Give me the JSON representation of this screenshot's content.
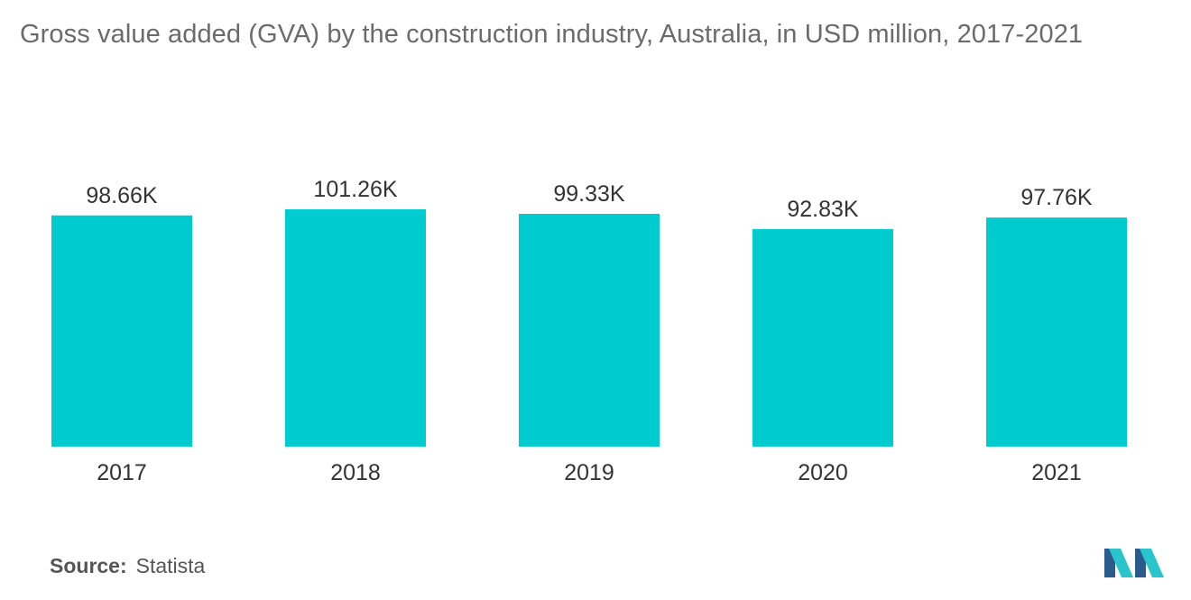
{
  "title": "Gross value added (GVA) by the construction industry, Australia, in USD million, 2017-2021",
  "source": {
    "label": "Source:",
    "value": "Statista"
  },
  "colors": {
    "bar": "#00ccd0",
    "logo_dark": "#2a5b8c",
    "logo_light": "#29c4cc"
  },
  "logo": {
    "name": "mordor-intelligence-logo"
  },
  "chart_data": {
    "type": "bar",
    "title": "Gross value added (GVA) by the construction industry, Australia, in USD million, 2017-2021",
    "categories": [
      "2017",
      "2018",
      "2019",
      "2020",
      "2021"
    ],
    "values": [
      98660,
      101260,
      99330,
      92830,
      97760
    ],
    "value_labels": [
      "98.66K",
      "101.26K",
      "99.33K",
      "92.83K",
      "97.76K"
    ],
    "ylim": [
      0,
      101260
    ],
    "grid": false,
    "legend": "none"
  }
}
